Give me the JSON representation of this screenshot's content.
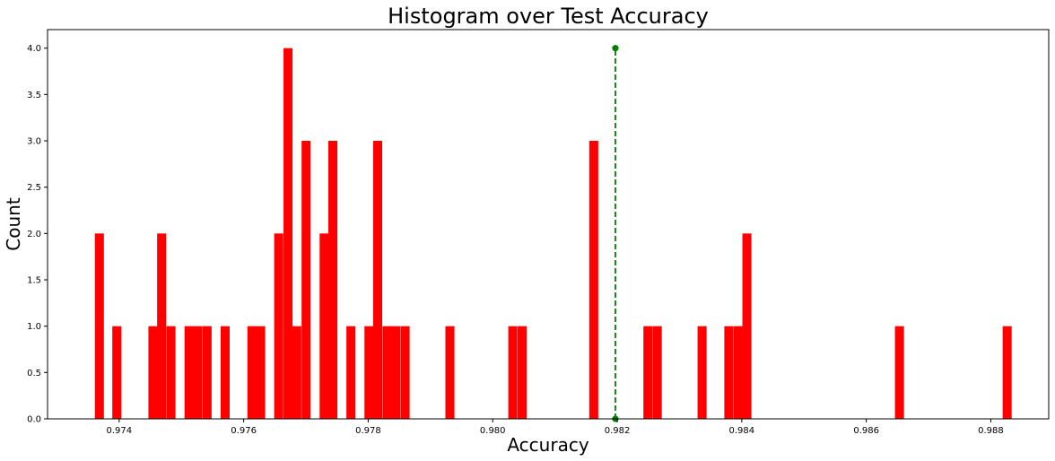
{
  "chart_data": {
    "type": "bar",
    "title": "Histogram over Test Accuracy",
    "xlabel": "Accuracy",
    "ylabel": "Count",
    "xlim": [
      0.97285,
      0.98893
    ],
    "ylim": [
      0.0,
      4.2
    ],
    "xticks": [
      0.974,
      0.976,
      0.978,
      0.98,
      0.982,
      0.984,
      0.986,
      0.988
    ],
    "xtick_labels": [
      "0.974",
      "0.976",
      "0.978",
      "0.980",
      "0.982",
      "0.984",
      "0.986",
      "0.988"
    ],
    "yticks": [
      0.0,
      0.5,
      1.0,
      1.5,
      2.0,
      2.5,
      3.0,
      3.5,
      4.0
    ],
    "ytick_labels": [
      "0.0",
      "0.5",
      "1.0",
      "1.5",
      "2.0",
      "2.5",
      "3.0",
      "3.5",
      "4.0"
    ],
    "bin_width": 0.000145,
    "bar_color": "#ff0000",
    "bins": [
      {
        "x": 0.97361,
        "count": 2
      },
      {
        "x": 0.97389,
        "count": 1
      },
      {
        "x": 0.97447,
        "count": 1
      },
      {
        "x": 0.97461,
        "count": 2
      },
      {
        "x": 0.97476,
        "count": 1
      },
      {
        "x": 0.97505,
        "count": 1
      },
      {
        "x": 0.97519,
        "count": 1
      },
      {
        "x": 0.97534,
        "count": 1
      },
      {
        "x": 0.97563,
        "count": 1
      },
      {
        "x": 0.97606,
        "count": 1
      },
      {
        "x": 0.9762,
        "count": 1
      },
      {
        "x": 0.97649,
        "count": 2
      },
      {
        "x": 0.97664,
        "count": 4
      },
      {
        "x": 0.97678,
        "count": 1
      },
      {
        "x": 0.97693,
        "count": 3
      },
      {
        "x": 0.97722,
        "count": 2
      },
      {
        "x": 0.97736,
        "count": 3
      },
      {
        "x": 0.97765,
        "count": 1
      },
      {
        "x": 0.97794,
        "count": 1
      },
      {
        "x": 0.97808,
        "count": 3
      },
      {
        "x": 0.97823,
        "count": 1
      },
      {
        "x": 0.97837,
        "count": 1
      },
      {
        "x": 0.97852,
        "count": 1
      },
      {
        "x": 0.97924,
        "count": 1
      },
      {
        "x": 0.98025,
        "count": 1
      },
      {
        "x": 0.9804,
        "count": 1
      },
      {
        "x": 0.98155,
        "count": 3
      },
      {
        "x": 0.98242,
        "count": 1
      },
      {
        "x": 0.98257,
        "count": 1
      },
      {
        "x": 0.98329,
        "count": 1
      },
      {
        "x": 0.98372,
        "count": 1
      },
      {
        "x": 0.98387,
        "count": 1
      },
      {
        "x": 0.98401,
        "count": 2
      },
      {
        "x": 0.98646,
        "count": 1
      },
      {
        "x": 0.98819,
        "count": 1
      }
    ],
    "reference_line": {
      "x": 0.98197,
      "y_start": 0.0,
      "y_end": 4.0,
      "style": "dashed",
      "marker": "circle",
      "color": "#008000"
    },
    "grid": false,
    "legend": "none"
  }
}
